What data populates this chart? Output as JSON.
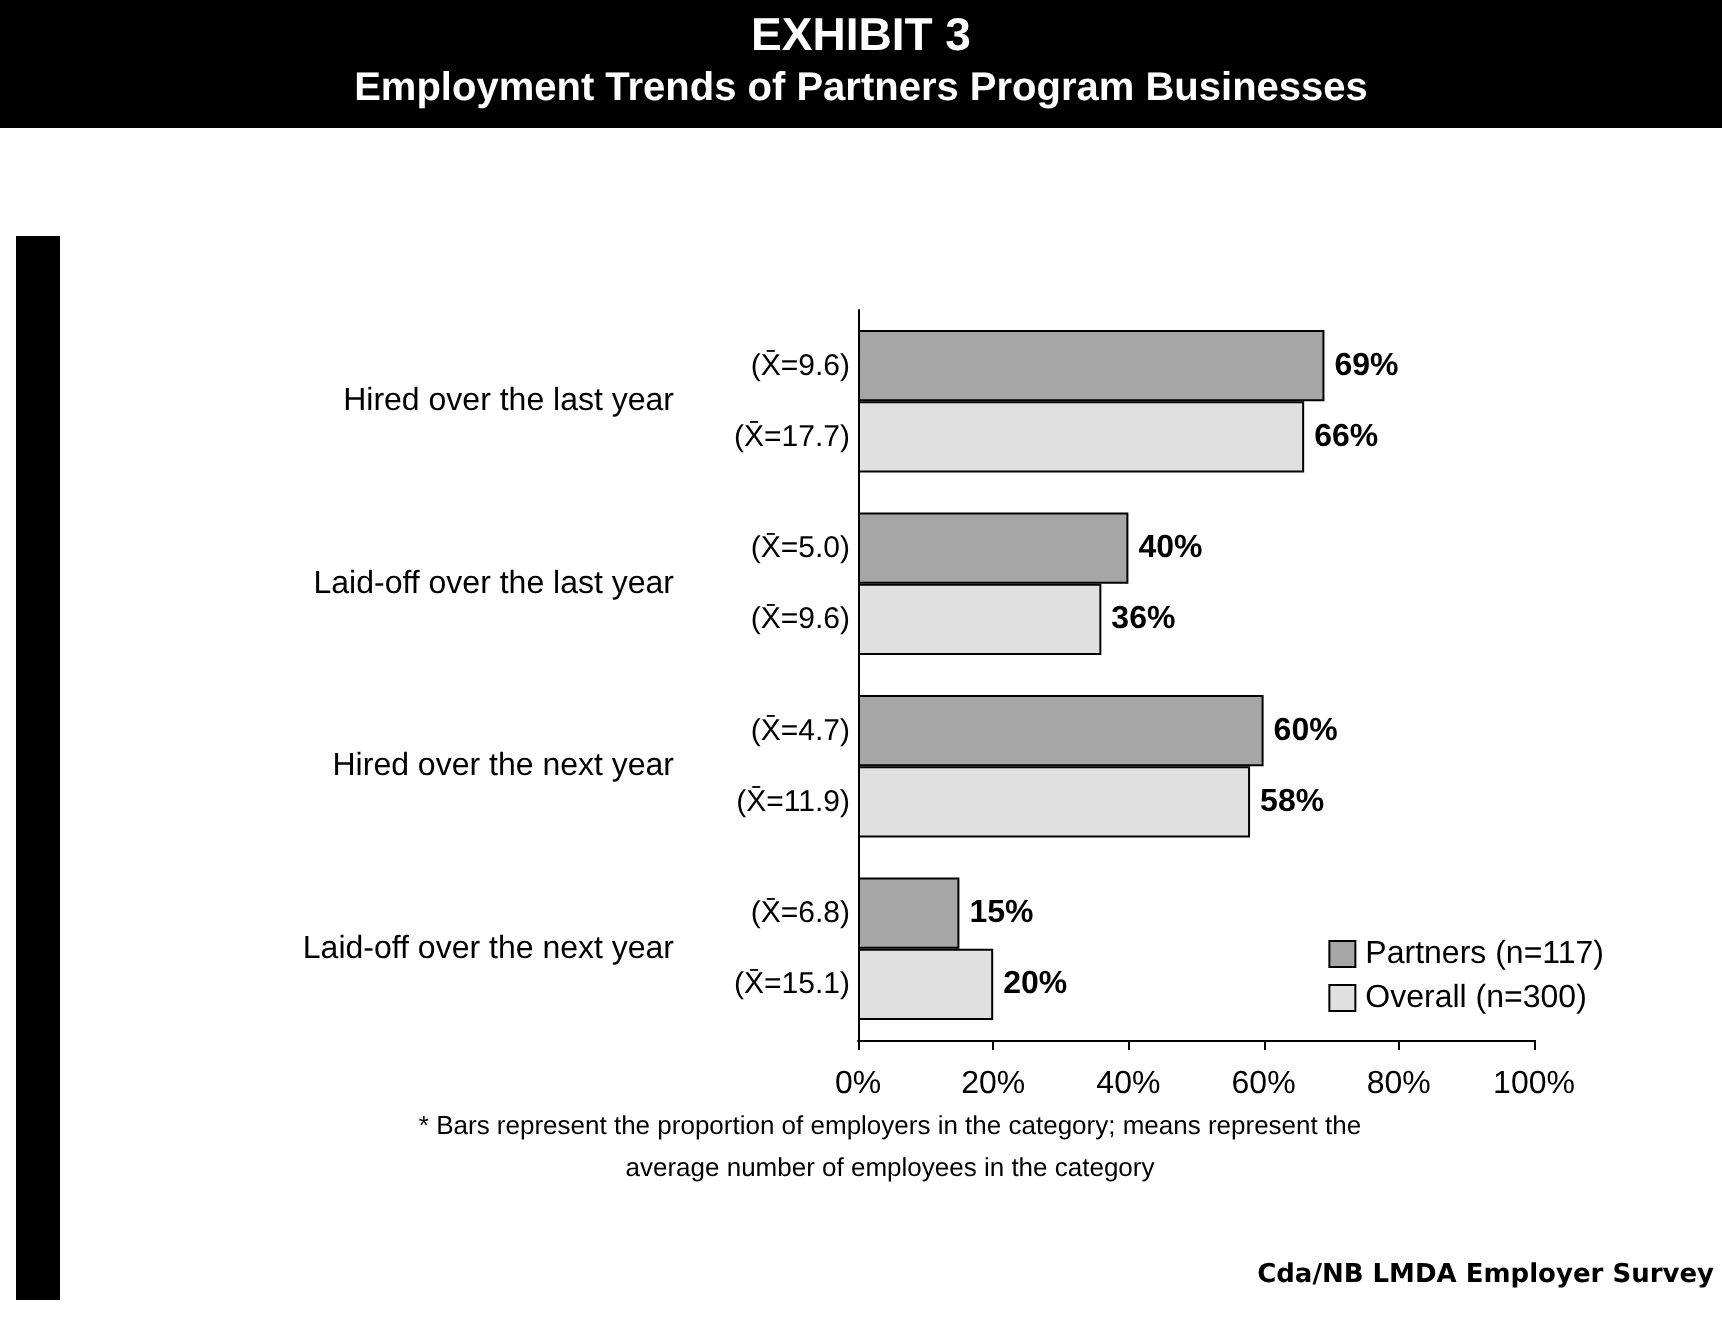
{
  "chart_data": {
    "type": "bar",
    "orientation": "horizontal",
    "title": "EXHIBIT 3",
    "subtitle": "Employment Trends of Partners Program Businesses",
    "categories": [
      "Hired over the last year",
      "Laid-off over the last year",
      "Hired over the next year",
      "Laid-off over the next year"
    ],
    "series": [
      {
        "name": "Partners (n=117)",
        "color": "#a6a6a6",
        "values": [
          69,
          40,
          60,
          15
        ],
        "value_labels": [
          "69%",
          "40%",
          "60%",
          "15%"
        ]
      },
      {
        "name": "Overall (n=300)",
        "color": "#e0e0e0",
        "values": [
          66,
          36,
          58,
          20
        ],
        "value_labels": [
          "66%",
          "36%",
          "58%",
          "20%"
        ]
      }
    ],
    "xlim": [
      0,
      100
    ],
    "xticks": [
      {
        "value": 0,
        "label": "0%"
      },
      {
        "value": 20,
        "label": "20%"
      },
      {
        "value": 40,
        "label": "40%"
      },
      {
        "value": 60,
        "label": "60%"
      },
      {
        "value": 80,
        "label": "80%"
      },
      {
        "value": 100,
        "label": "100%"
      }
    ],
    "grid": false,
    "legend": "bottom right",
    "annotations": [
      "(X̄=9.6)",
      "(X̄=17.7)",
      "(X̄=5.0)",
      "(X̄=9.6)",
      "(X̄=4.7)",
      "(X̄=11.9)",
      "(X̄=6.8)",
      "(X̄=15.1)",
      "* Bars represent the proportion of employers in the category; means represent the average number of employees in the category",
      "Cda/NB LMDA Employer Survey"
    ]
  }
}
